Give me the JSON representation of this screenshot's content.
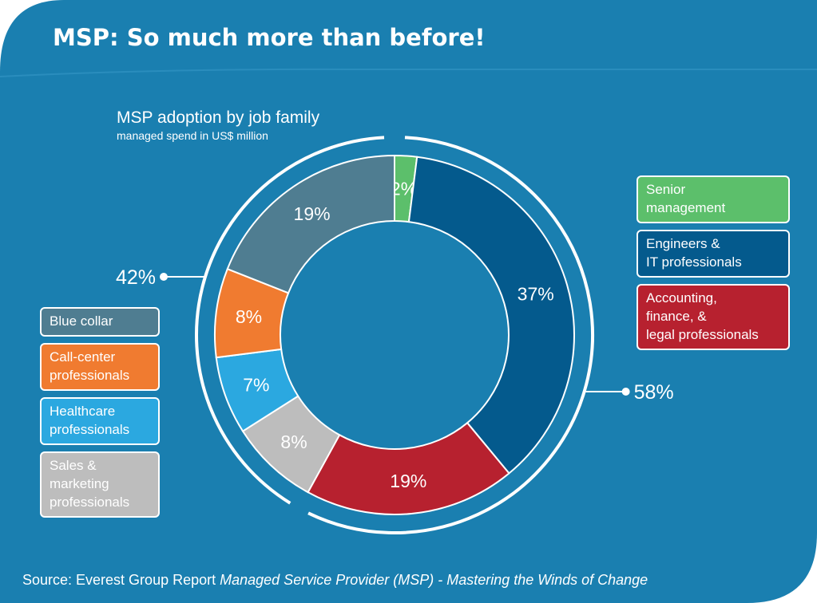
{
  "header": {
    "title": "MSP: So much more than before!"
  },
  "source": {
    "prefix": "Source: Everest Group Report ",
    "report": "Managed Service Provider (MSP) - Mastering the Winds of Change"
  },
  "colors": {
    "background": "#1a7fb0",
    "outer": "#ffffff"
  },
  "chart_data": {
    "type": "pie",
    "subtype": "donut",
    "title": "MSP adoption by job family",
    "subtitle": "managed spend in US$ million",
    "unit": "%",
    "slices": [
      {
        "name": "Senior management",
        "value": 2,
        "label": "2%",
        "color": "#5cbf6b"
      },
      {
        "name": "Engineers & IT professionals",
        "value": 37,
        "label": "37%",
        "color": "#045a8d"
      },
      {
        "name": "Accounting, finance, & legal professionals",
        "value": 19,
        "label": "19%",
        "color": "#b7212f"
      },
      {
        "name": "Sales & marketing professionals",
        "value": 8,
        "label": "8%",
        "color": "#bdbdbd"
      },
      {
        "name": "Healthcare professionals",
        "value": 7,
        "label": "7%",
        "color": "#2ba8e0"
      },
      {
        "name": "Call-center professionals",
        "value": 8,
        "label": "8%",
        "color": "#f07b30"
      },
      {
        "name": "Blue collar",
        "value": 19,
        "label": "19%",
        "color": "#4f7d91"
      }
    ],
    "groups": [
      {
        "label": "58%",
        "side": "right",
        "members": [
          "Senior management",
          "Engineers & IT professionals",
          "Accounting, finance, & legal professionals"
        ]
      },
      {
        "label": "42%",
        "side": "left",
        "members": [
          "Sales & marketing professionals",
          "Healthcare professionals",
          "Call-center professionals",
          "Blue collar"
        ]
      }
    ],
    "legend_right": [
      {
        "lines": [
          "Senior",
          "management"
        ],
        "color": "#5cbf6b"
      },
      {
        "lines": [
          "Engineers &",
          "IT professionals"
        ],
        "color": "#045a8d"
      },
      {
        "lines": [
          "Accounting,",
          "finance, &",
          "legal professionals"
        ],
        "color": "#b7212f"
      }
    ],
    "legend_left": [
      {
        "lines": [
          "Blue collar"
        ],
        "color": "#4f7d91"
      },
      {
        "lines": [
          "Call-center",
          "professionals"
        ],
        "color": "#f07b30"
      },
      {
        "lines": [
          "Healthcare",
          "professionals"
        ],
        "color": "#2ba8e0"
      },
      {
        "lines": [
          "Sales &",
          "marketing",
          "professionals"
        ],
        "color": "#bdbdbd"
      }
    ]
  }
}
